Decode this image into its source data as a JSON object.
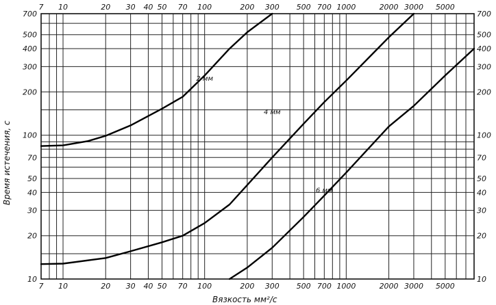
{
  "chart_data": {
    "type": "line",
    "title": "",
    "xlabel": "Вязкость мм²/с",
    "ylabel": "Время истечения, с",
    "x_scale": "log",
    "y_scale": "log",
    "xlim": [
      7,
      8000
    ],
    "ylim": [
      10,
      700
    ],
    "grid": true,
    "legend": "none",
    "x_ticks_bottom": [
      "7",
      "10",
      "20",
      "30",
      "40",
      "50",
      "70",
      "100",
      "200",
      "300",
      "500",
      "700",
      "1000",
      "2000",
      "3000",
      "5000"
    ],
    "x_ticks_top": [
      "7",
      "10",
      "20",
      "30",
      "40",
      "50",
      "70",
      "100",
      "200",
      "300",
      "500",
      "700",
      "1000",
      "2000",
      "3000",
      "5000"
    ],
    "y_ticks_left": [
      "700",
      "500",
      "400",
      "300",
      "200",
      "100",
      "70",
      "50",
      "40",
      "30",
      "20",
      "10"
    ],
    "y_ticks_right": [
      "700",
      "500",
      "400",
      "300",
      "200",
      "100",
      "70",
      "50",
      "40",
      "30",
      "20",
      "10"
    ],
    "series": [
      {
        "name": "2 мм",
        "label_at": [
          100,
          240
        ],
        "points": [
          [
            7,
            84
          ],
          [
            10,
            85
          ],
          [
            15,
            91
          ],
          [
            20,
            99
          ],
          [
            30,
            117
          ],
          [
            50,
            153
          ],
          [
            70,
            185
          ],
          [
            100,
            260
          ],
          [
            150,
            400
          ],
          [
            200,
            520
          ],
          [
            300,
            700
          ]
        ]
      },
      {
        "name": "4 мм",
        "label_at": [
          300,
          140
        ],
        "points": [
          [
            7,
            12.7
          ],
          [
            10,
            12.8
          ],
          [
            20,
            14
          ],
          [
            30,
            15.6
          ],
          [
            50,
            18
          ],
          [
            70,
            20
          ],
          [
            100,
            24.5
          ],
          [
            150,
            33
          ],
          [
            200,
            45
          ],
          [
            300,
            70
          ],
          [
            500,
            120
          ],
          [
            700,
            170
          ],
          [
            1000,
            240
          ],
          [
            2000,
            480
          ],
          [
            3000,
            700
          ]
        ]
      },
      {
        "name": "6 мм",
        "label_at": [
          700,
          40
        ],
        "points": [
          [
            150,
            10
          ],
          [
            200,
            12
          ],
          [
            300,
            16.5
          ],
          [
            500,
            27
          ],
          [
            700,
            38
          ],
          [
            1000,
            55
          ],
          [
            2000,
            115
          ],
          [
            3000,
            160
          ],
          [
            5000,
            260
          ],
          [
            8000,
            400
          ]
        ]
      }
    ]
  }
}
